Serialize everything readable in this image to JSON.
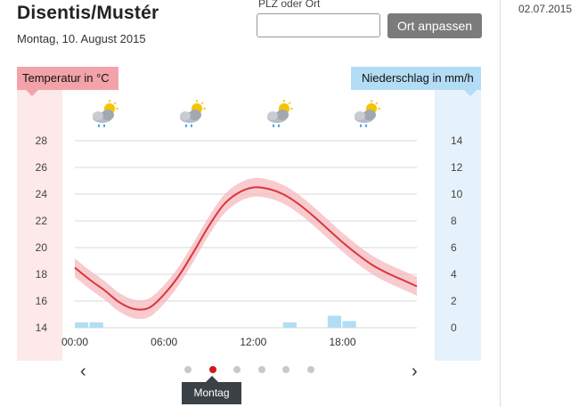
{
  "header": {
    "location": "Disentis/Mustér",
    "date_line": "Montag, 10. August 2015"
  },
  "search": {
    "label": "PLZ oder Ort",
    "value": "",
    "placeholder": "",
    "button_label": "Ort anpassen"
  },
  "side_panel": {
    "date": "02.07.2015"
  },
  "weather_icons": [
    "sun-cloud-rain-icon",
    "sun-cloud-rain-icon",
    "sun-cloud-rain-icon",
    "sun-cloud-rain-icon"
  ],
  "chart_data": {
    "type": "line",
    "temperature_label": "Temperatur in °C",
    "precipitation_label": "Niederschlag in mm/h",
    "temp_color": "#d9363e",
    "temp_band_color": "#f6b9bd",
    "precip_color": "#b3dcf5",
    "x_ticks": [
      "00:00",
      "06:00",
      "12:00",
      "18:00"
    ],
    "xlim": [
      0,
      23
    ],
    "temp_ticks": [
      14,
      16,
      18,
      20,
      22,
      24,
      26,
      28
    ],
    "temp_lim": [
      14,
      28
    ],
    "precip_ticks": [
      0,
      2,
      4,
      6,
      8,
      10,
      12,
      14
    ],
    "precip_lim": [
      0,
      14
    ],
    "temperature": {
      "hours": [
        0,
        1,
        2,
        3,
        4,
        5,
        6,
        7,
        8,
        9,
        10,
        11,
        12,
        13,
        14,
        15,
        16,
        17,
        18,
        19,
        20,
        21,
        22,
        23
      ],
      "values": [
        18.5,
        17.6,
        16.8,
        15.9,
        15.4,
        15.5,
        16.5,
        17.9,
        19.7,
        21.6,
        23.2,
        24.1,
        24.5,
        24.4,
        24.0,
        23.3,
        22.4,
        21.4,
        20.4,
        19.5,
        18.7,
        18.1,
        17.6,
        17.1
      ],
      "band_half_width": 0.7
    },
    "precipitation": {
      "hours": [
        0,
        1,
        14,
        17,
        18
      ],
      "values": [
        0.4,
        0.4,
        0.4,
        0.9,
        0.5
      ]
    }
  },
  "pager": {
    "total": 6,
    "active_index": 1,
    "day_label": "Montag"
  },
  "colors": {
    "accent_red": "#d4161f",
    "button_gray": "#7b7b7b"
  }
}
